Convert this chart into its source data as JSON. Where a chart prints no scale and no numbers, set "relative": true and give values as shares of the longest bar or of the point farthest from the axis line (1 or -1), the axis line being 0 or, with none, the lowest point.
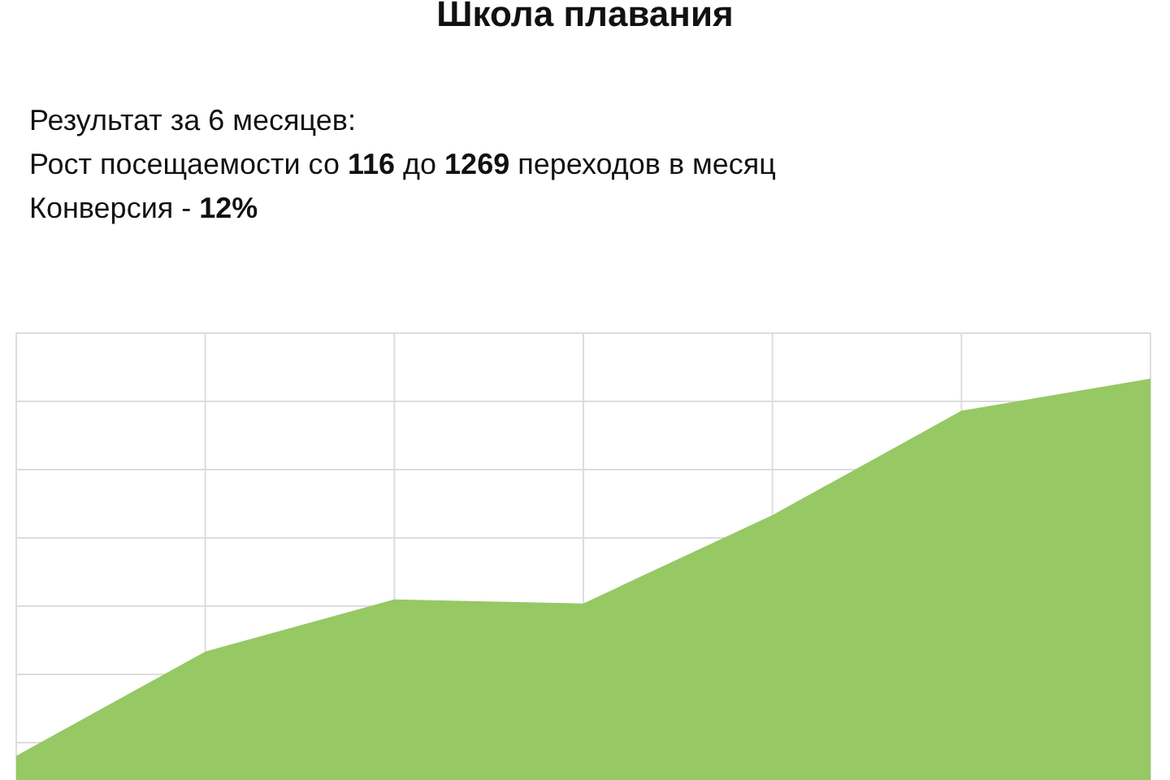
{
  "chart_data": {
    "type": "area",
    "title": "Школа плавания",
    "annotations": [
      "Результат за 6 месяцев:",
      "Рост посещаемости со 116 до 1269 переходов в месяц",
      "Конверсия - 12%"
    ],
    "categories": [
      null,
      null,
      null,
      null,
      null,
      null,
      null
    ],
    "values": [
      0.06,
      0.32,
      0.45,
      0.44,
      0.66,
      0.92,
      1
    ],
    "color": "#96c864",
    "relative": true,
    "grid": true
  }
}
